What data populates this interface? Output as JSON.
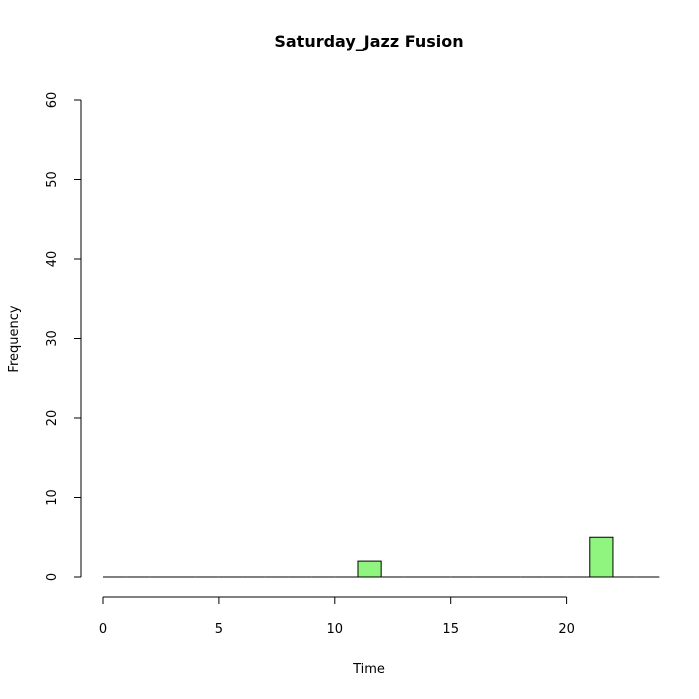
{
  "chart_data": {
    "type": "bar",
    "title": "Saturday_Jazz Fusion",
    "xlabel": "Time",
    "ylabel": "Frequency",
    "xlim": [
      -1,
      24
    ],
    "ylim": [
      0,
      60
    ],
    "xticks": [
      0,
      5,
      10,
      15,
      20
    ],
    "yticks": [
      0,
      10,
      20,
      30,
      40,
      50,
      60
    ],
    "bin_width": 1,
    "bins": [
      {
        "x0": 0,
        "count": 0
      },
      {
        "x0": 1,
        "count": 0
      },
      {
        "x0": 2,
        "count": 0
      },
      {
        "x0": 3,
        "count": 0
      },
      {
        "x0": 4,
        "count": 0
      },
      {
        "x0": 5,
        "count": 0
      },
      {
        "x0": 6,
        "count": 0
      },
      {
        "x0": 7,
        "count": 0
      },
      {
        "x0": 8,
        "count": 0
      },
      {
        "x0": 9,
        "count": 0
      },
      {
        "x0": 10,
        "count": 0
      },
      {
        "x0": 11,
        "count": 2
      },
      {
        "x0": 12,
        "count": 0
      },
      {
        "x0": 13,
        "count": 0
      },
      {
        "x0": 14,
        "count": 0
      },
      {
        "x0": 15,
        "count": 0
      },
      {
        "x0": 16,
        "count": 0
      },
      {
        "x0": 17,
        "count": 0
      },
      {
        "x0": 18,
        "count": 0
      },
      {
        "x0": 19,
        "count": 0
      },
      {
        "x0": 20,
        "count": 0
      },
      {
        "x0": 21,
        "count": 5
      },
      {
        "x0": 22,
        "count": 0
      },
      {
        "x0": 23,
        "count": 0
      }
    ],
    "bar_color": "#90f57f"
  }
}
